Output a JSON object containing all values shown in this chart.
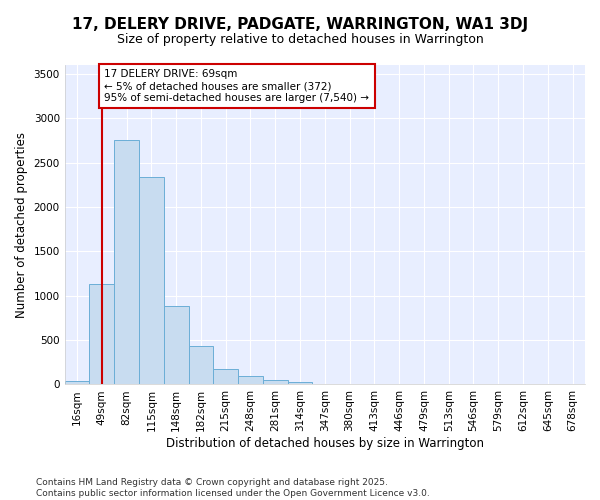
{
  "title": "17, DELERY DRIVE, PADGATE, WARRINGTON, WA1 3DJ",
  "subtitle": "Size of property relative to detached houses in Warrington",
  "xlabel": "Distribution of detached houses by size in Warrington",
  "ylabel": "Number of detached properties",
  "categories": [
    "16sqm",
    "49sqm",
    "82sqm",
    "115sqm",
    "148sqm",
    "182sqm",
    "215sqm",
    "248sqm",
    "281sqm",
    "314sqm",
    "347sqm",
    "380sqm",
    "413sqm",
    "446sqm",
    "479sqm",
    "513sqm",
    "546sqm",
    "579sqm",
    "612sqm",
    "645sqm",
    "678sqm"
  ],
  "values": [
    40,
    1130,
    2760,
    2340,
    880,
    430,
    175,
    100,
    55,
    30,
    10,
    0,
    0,
    0,
    0,
    0,
    0,
    0,
    0,
    0,
    0
  ],
  "bar_color": "#c8dcf0",
  "bar_edge_color": "#6baed6",
  "vline_x": 1,
  "vline_color": "#cc0000",
  "annotation_text": "17 DELERY DRIVE: 69sqm\n← 5% of detached houses are smaller (372)\n95% of semi-detached houses are larger (7,540) →",
  "annotation_box_color": "#ffffff",
  "annotation_box_edge": "#cc0000",
  "ylim": [
    0,
    3600
  ],
  "yticks": [
    0,
    500,
    1000,
    1500,
    2000,
    2500,
    3000,
    3500
  ],
  "footer": "Contains HM Land Registry data © Crown copyright and database right 2025.\nContains public sector information licensed under the Open Government Licence v3.0.",
  "bg_color": "#ffffff",
  "plot_bg_color": "#e8eeff",
  "grid_color": "#ffffff",
  "title_fontsize": 11,
  "subtitle_fontsize": 9,
  "axis_label_fontsize": 8.5,
  "tick_fontsize": 7.5,
  "footer_fontsize": 6.5,
  "annot_fontsize": 7.5
}
